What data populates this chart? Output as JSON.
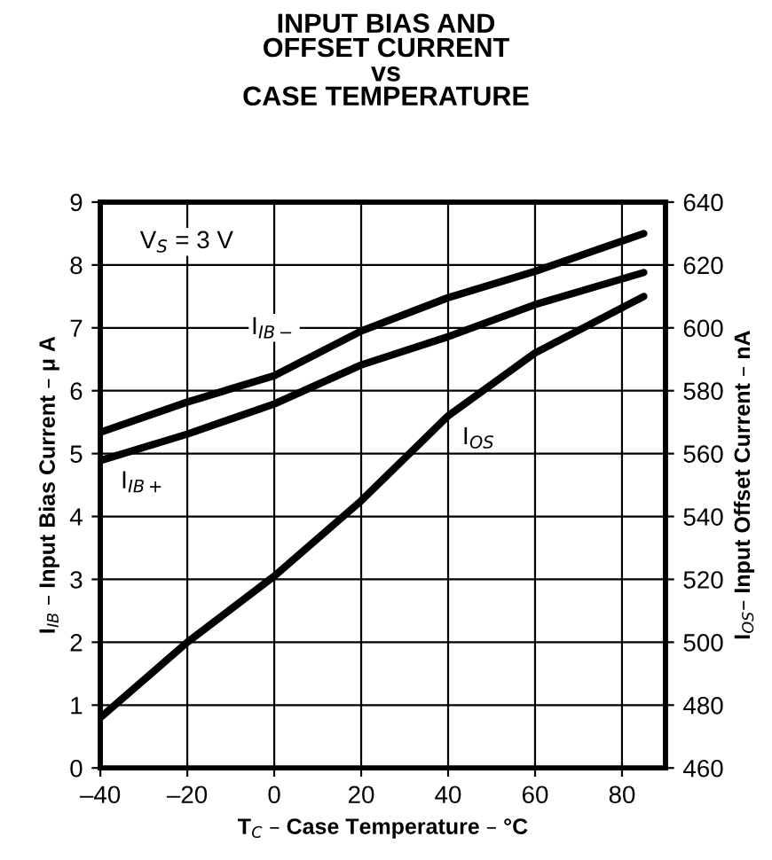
{
  "chart_data": {
    "type": "line",
    "title": "INPUT BIAS AND\nOFFSET CURRENT\nvs\nCASE TEMPERATURE",
    "xlabel": "T$_{C}$ – Case Temperature – °C",
    "ylabel": "I$_{IB}$ – Input Bias Current – μ A",
    "y2label": "I$_{OS}$– Input Offset Current – nA",
    "annotations": [
      "V$_{S}$ = 3 V"
    ],
    "series": [
      {
        "name": "I$_{IB−}$",
        "color": "#000000",
        "x": [
          -40,
          -20,
          0,
          20,
          40,
          60,
          85
        ],
        "values": [
          5.34,
          5.82,
          6.24,
          6.95,
          7.48,
          7.9,
          8.5
        ]
      },
      {
        "name": "I$_{IB+}$",
        "color": "#000000",
        "x": [
          -40,
          -20,
          0,
          20,
          40,
          60,
          85
        ],
        "values": [
          4.89,
          5.31,
          5.79,
          6.41,
          6.86,
          7.37,
          7.88
        ]
      },
      {
        "name": "I$_{OS}$",
        "color": "#000000",
        "axis": "y2",
        "x": [
          -40,
          -20,
          0,
          20,
          40,
          60,
          85
        ],
        "values": [
          476,
          500,
          521,
          545,
          572,
          592,
          610
        ]
      }
    ],
    "xlim": [
      -40,
      90
    ],
    "xticks": [
      {
        "value": -40,
        "label": "–40"
      },
      {
        "value": -20,
        "label": "–20"
      },
      0,
      20,
      40,
      60,
      80
    ],
    "ylim": [
      0,
      9
    ],
    "yticks": [
      0,
      1,
      2,
      3,
      4,
      5,
      6,
      7,
      8,
      9
    ],
    "y2lim": [
      460,
      640
    ],
    "y2ticks": [
      460,
      480,
      500,
      520,
      540,
      560,
      580,
      600,
      620,
      640
    ],
    "grid": true,
    "legend": false,
    "line_style": "solid",
    "marker": "none"
  }
}
